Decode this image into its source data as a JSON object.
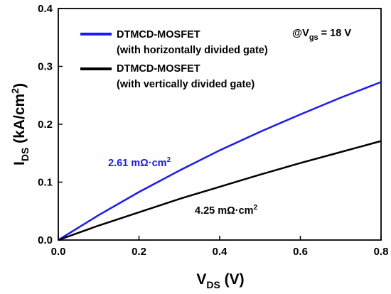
{
  "chart_data": {
    "type": "line",
    "xlabel": {
      "main": "V",
      "sub": "DS",
      "unit": " (V)"
    },
    "ylabel": {
      "main": "I",
      "sub": "DS",
      "unit": " (kA/cm",
      "sup": "2",
      "close": ")"
    },
    "xlim": [
      0.0,
      0.8
    ],
    "ylim": [
      0.0,
      0.4
    ],
    "xticks": [
      "0.0",
      "0.2",
      "0.4",
      "0.6",
      "0.8"
    ],
    "yticks": [
      "0.0",
      "0.1",
      "0.2",
      "0.3",
      "0.4"
    ],
    "grid": false,
    "legend_position": "top-left",
    "series": [
      {
        "name": "DTMCD-MOSFET",
        "name_line2": "(with horizontally divided gate)",
        "color": "#1a1aff",
        "x": [
          0.0,
          0.1,
          0.2,
          0.3,
          0.4,
          0.5,
          0.6,
          0.7,
          0.8
        ],
        "y": [
          0.0,
          0.043,
          0.083,
          0.12,
          0.155,
          0.187,
          0.217,
          0.246,
          0.273
        ]
      },
      {
        "name": "DTMCD-MOSFET",
        "name_line2": "(with vertically divided gate)",
        "color": "#000000",
        "x": [
          0.0,
          0.1,
          0.2,
          0.3,
          0.4,
          0.5,
          0.6,
          0.7,
          0.8
        ],
        "y": [
          0.0,
          0.025,
          0.048,
          0.071,
          0.092,
          0.113,
          0.133,
          0.152,
          0.171
        ]
      }
    ],
    "annotations": {
      "condition": {
        "prefix": "@V",
        "sub": "gs",
        "suffix": " = 18 V"
      },
      "blue_resistance": {
        "text": "2.61 mΩ·cm",
        "sup": "2",
        "color": "#1a1aff"
      },
      "black_resistance": {
        "text": "4.25 mΩ·cm",
        "sup": "2",
        "color": "#000000"
      }
    }
  }
}
